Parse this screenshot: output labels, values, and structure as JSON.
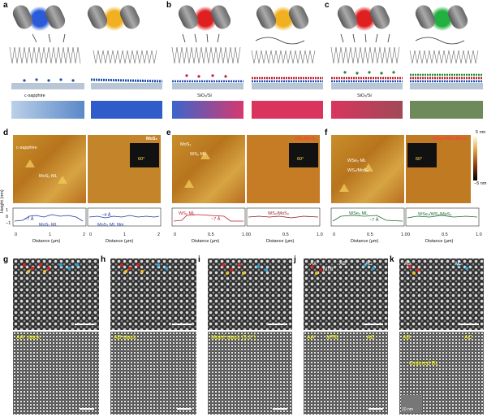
{
  "panels": {
    "a": "a",
    "b": "b",
    "c": "c",
    "d": "d",
    "e": "e",
    "f": "f",
    "g": "g",
    "h": "h",
    "i": "i",
    "j": "j",
    "k": "k"
  },
  "top": {
    "a_sub": "c-sapphire",
    "b_sub": "SiO₂/Si",
    "c_sub": "SiO₂/Si",
    "lamp_colors": {
      "a": [
        "#2a5bd8",
        "#f0b020"
      ],
      "b": [
        "#e02020",
        "#f0b020"
      ],
      "c": [
        "#e02020",
        "#22b040"
      ]
    }
  },
  "afm": {
    "d_left": {
      "t1": "c-sapphire",
      "t2": "MoS₂ ML"
    },
    "d_right": {
      "title": "MoS₂",
      "angle": "60°"
    },
    "e_left": {
      "t1": "MoS₂",
      "t2": "WS₂ ML"
    },
    "e_right": {
      "title": "WS₂/MoS₂",
      "angle": "60°"
    },
    "f_left": {
      "t1": "WSe₂ ML",
      "t2": "WS₂/MoS₂"
    },
    "f_right": {
      "title": "WSe₂/WS₂/MoS₂",
      "angle": "60°"
    },
    "scale_top": "5 nm",
    "scale_bot": "−5 nm"
  },
  "profiles": {
    "ylabel": "Height (nm)",
    "xlabel": "Distance (µm)",
    "d1": {
      "a1": "~7 Å",
      "a2": "MoS₂ ML",
      "ticks": [
        "0",
        "1",
        "2"
      ]
    },
    "d2": {
      "a1": "~4 Å",
      "a2": "MoS₂ ML film",
      "ticks": [
        "0",
        "1",
        "2"
      ]
    },
    "e1": {
      "a1": "WS₂ ML",
      "a2": "~7 Å",
      "ticks": [
        "0",
        "0.5",
        "1.0"
      ]
    },
    "e2": {
      "a1": "WS₂/MoS₂",
      "ticks": [
        "0",
        "0.5",
        "1.0"
      ]
    },
    "f1": {
      "a1": "WSe₂ ML",
      "a2": "~7 Å",
      "ticks": [
        "0",
        "0.5",
        "1.0"
      ]
    },
    "f2": {
      "a1": "WSe₂/WS₂/MoS₂",
      "ticks": [
        "0",
        "0.5",
        "1.0"
      ]
    },
    "yticks": [
      "1",
      "0",
      "−1"
    ]
  },
  "stem": {
    "g": {
      "bottom": "AA' stack"
    },
    "h": {
      "bottom": "AB stack"
    },
    "i": {
      "bottom": "Moiré stack (5.1°)"
    },
    "j": {
      "top1": "AA'",
      "top2": "MTB",
      "top3": "AB",
      "top4": "AC",
      "bottom1": "AA'",
      "bottom2": "AC",
      "bottom3": "MTB"
    },
    "k": {
      "top1": "AB",
      "top2": "AC",
      "bottom1": "AB",
      "bottom2": "AC",
      "bottom3": "Ordered BL",
      "inset": "10 nm"
    }
  }
}
